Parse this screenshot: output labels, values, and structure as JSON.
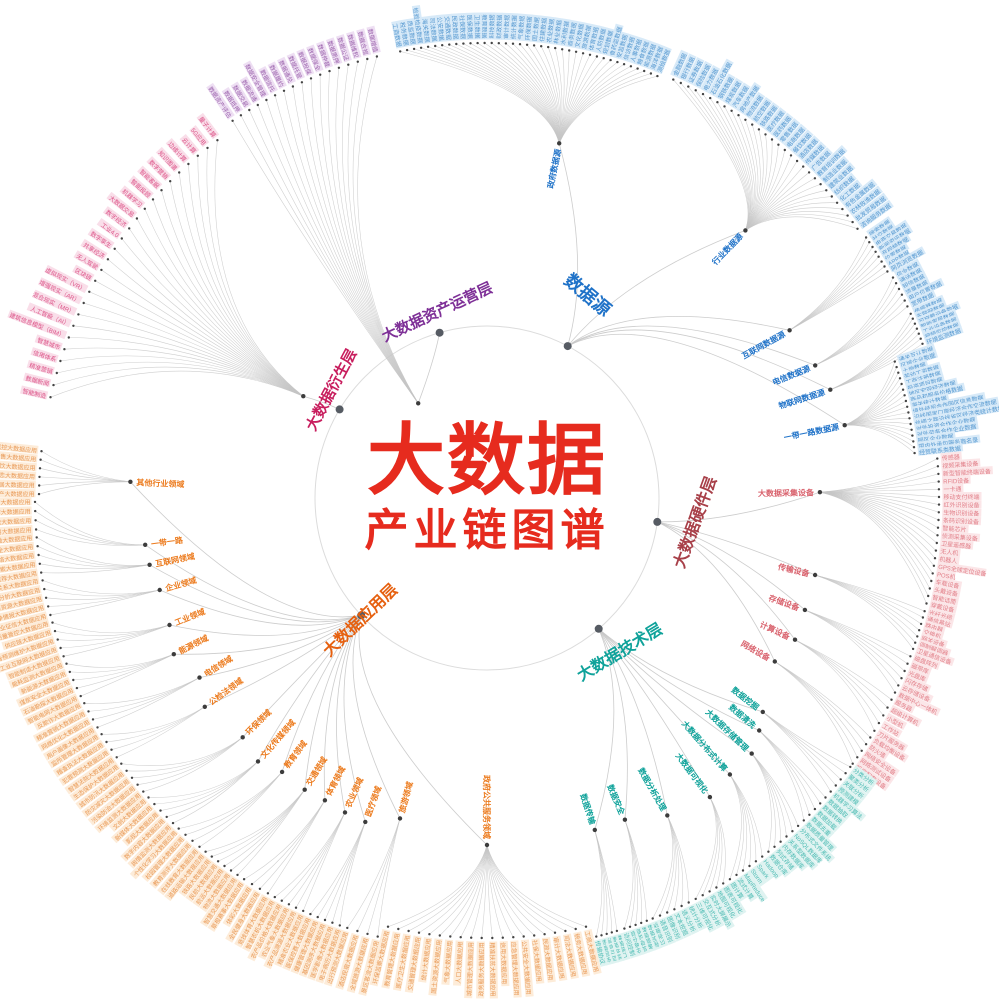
{
  "title": {
    "main": "大数据",
    "sub": "产业链图谱",
    "color": "#e62b1e"
  },
  "ring_color": "#dcdcdc",
  "link_color": "#c6c6c6",
  "branches": [
    {
      "label": "数据源",
      "color": "#1f72c8",
      "leaf_color": "#5598d0",
      "leaf_bg": "#d8eaf8",
      "subs": [
        {
          "label": "政府数据源",
          "leaves": [
            "工商数据",
            "税务数据",
            "质监数据",
            "检验检疫数据",
            "海关数据",
            "司法数据",
            "公安数据",
            "交通数据",
            "民政数据",
            "社保数据",
            "医保数据",
            "卫生数据",
            "教育数据",
            "科技数据",
            "财政数据",
            "审计数据",
            "统计数据",
            "气象数据",
            "环保数据",
            "国土数据",
            "住建数据",
            "农业数据",
            "林业数据",
            "水利数据",
            "商务数据",
            "文化数据",
            "旅游数据",
            "体育数据",
            "人防数据",
            "规划数据",
            "食药监数据",
            "安监数据",
            "信访数据",
            "人事数据",
            "粮食数据",
            "能源数据",
            "海洋数据",
            "测绘数据"
          ]
        },
        {
          "label": "行业数据源",
          "leaves": [
            "金融数据",
            "银行数据",
            "证券数据",
            "保险数据",
            "电力数据",
            "石油石化数据",
            "钢铁数据",
            "煤炭数据",
            "汽车数据",
            "房地产数据",
            "物流数据",
            "航空数据",
            "铁路数据",
            "医疗数据",
            "医药数据",
            "零售数据",
            "电商数据",
            "餐饮数据",
            "酒店数据",
            "传媒数据",
            "广告数据",
            "教育培训数据",
            "制造业数据",
            "建筑业数据",
            "纺织数据",
            "化工数据",
            "有色金属数据",
            "农林牧渔数据",
            "批发贸易数据",
            "咨询服务数据"
          ]
        },
        {
          "label": "互联网数据源",
          "leaves": [
            "搜索数据",
            "社交数据",
            "电商交易数据",
            "新闻资讯数据",
            "音视频数据",
            "位置数据",
            "APP数据",
            "网页浏览数据"
          ]
        },
        {
          "label": "电信数据源",
          "leaves": [
            "信令数据",
            "通话数据",
            "短信数据",
            "流量数据",
            "用户位置数据",
            "宽带数据"
          ]
        },
        {
          "label": "物联网数据源",
          "leaves": [
            "传感器数据",
            "车联网数据",
            "可穿戴设备数据",
            "智能家居数据",
            "工业设备数据",
            "视频监控数据",
            "环境监测数据"
          ]
        },
        {
          "label": "一带一路数据源",
          "leaves": [
            "通关互认数据",
            "区域企业数据",
            "土地数据",
            "劳动工资数据",
            "工商注册数据",
            "投资项目数据",
            "地区宏观经济数据",
            "商品和服务价格数据",
            "海关统计数据",
            "境外经贸合作园区信息数据",
            "沿线国家口岸经济合作交流数据",
            "丝绸之路沿线省区经济类统计数据",
            "对外投资合作企业数据",
            "对外劳务合作企业数据",
            "园区企业数据",
            "国内外承包服务商名录",
            "经贸联系类数据"
          ]
        }
      ]
    },
    {
      "label": "大数据硬件层",
      "color": "#a84049",
      "sub_color": "#d9626d",
      "leaf_color": "#e2808a",
      "leaf_bg": "#fbe6e8",
      "subs": [
        {
          "label": "大数据采集设备",
          "leaves": [
            "传感器",
            "视频采集设备",
            "新型智能终端设备",
            "RFID设备",
            "一卡通",
            "移动支付终端",
            "红外识别设备",
            "生物识别设备",
            "条码识别设备",
            "智能芯片",
            "侦测采集设备",
            "卫星遥感器",
            "无人机",
            "机器人",
            "GPS全球定位设备",
            "POS机",
            "车载设备",
            "头戴设备",
            "智能话筒",
            "穿戴设备"
          ]
        },
        {
          "label": "传输设备",
          "leaves": [
            "光纤光缆",
            "通信基站",
            "路由器",
            "交换机",
            "网关设备",
            "调制解调器",
            "卫星通信设备"
          ]
        },
        {
          "label": "存储设备",
          "leaves": [
            "磁盘阵列",
            "磁带库",
            "光盘库",
            "闪存存储",
            "云存储设备",
            "数据中心一体机"
          ]
        },
        {
          "label": "计算设备",
          "leaves": [
            "服务器",
            "超级计算机",
            "小型机",
            "工作站",
            "刀片服务器"
          ]
        },
        {
          "label": "网络设备",
          "leaves": [
            "负载均衡设备",
            "防火墙",
            "网络安全设备",
            "网络测试设备",
            "机房配套设备"
          ]
        }
      ]
    },
    {
      "label": "大数据技术层",
      "color": "#0fa29a",
      "leaf_color": "#4fbcb4",
      "leaf_bg": "#dff3f1",
      "subs": [
        {
          "label": "数据挖掘",
          "leaves": [
            "分类分析",
            "聚类分析",
            "关联分析",
            "预测建模",
            "机器学习算法"
          ]
        },
        {
          "label": "数据清洗",
          "leaves": [
            "数据抽取",
            "数据转换",
            "数据加载",
            "数据去重",
            "数据质量管理"
          ]
        },
        {
          "label": "大数据存储管理",
          "leaves": [
            "分布式文件系统",
            "NoSQL数据库",
            "关系型数据库",
            "内存数据库",
            "列式存储",
            "数据仓库"
          ]
        },
        {
          "label": "大数据分布式计算",
          "leaves": [
            "Hadoop",
            "Spark",
            "Storm",
            "MapReduce",
            "流式计算",
            "图计算"
          ]
        },
        {
          "label": "大数据可视化",
          "leaves": [
            "图表可视化",
            "地图可视化",
            "实时大屏展示",
            "交互式分析",
            "三维可视化"
          ]
        },
        {
          "label": "数据分析处理",
          "leaves": [
            "统计分析",
            "语义分析",
            "文本挖掘",
            "图像识别",
            "语音识别",
            "深度学习"
          ]
        },
        {
          "label": "数据安全",
          "leaves": [
            "数据加密",
            "数据脱敏",
            "隐私保护",
            "容灾备份",
            "访问控制"
          ]
        },
        {
          "label": "数据传输",
          "leaves": [
            "数据接口",
            "数据总线",
            "消息队列",
            "数据同步",
            "传输协议"
          ]
        }
      ]
    },
    {
      "label": "大数据应用层",
      "color": "#e6600f",
      "sub_color": "#ec7b1e",
      "leaf_color": "#e99a57",
      "leaf_bg": "#fdecd9",
      "subs": [
        {
          "label": "政府公共服务领域",
          "leaves": [
            "工商大数据应用",
            "税务大数据应用",
            "司法大数据应用",
            "审计大数据应用",
            "民政大数据应用",
            "社保大数据应用",
            "公共安全大数据应用",
            "应急管理大数据应用",
            "信用大数据应用",
            "精准扶贫大数据应用",
            "政务服务大数据应用",
            "城市管理大数据应用",
            "人口大数据应用",
            "气象大数据应用",
            "国土资源大数据应用",
            "统计大数据应用",
            "交通管理大数据应用",
            "医疗卫生大数据应用",
            "教育管理大数据应用",
            "环保监察大数据应用"
          ]
        },
        {
          "label": "旅游领域",
          "leaves": [
            "景区客流大数据应用",
            "全域旅游大数据应用",
            "酒店民宿大数据应用",
            "出行预测大数据应用"
          ]
        },
        {
          "label": "医疗领域",
          "leaves": [
            "电子病历大数据应用",
            "医学影像大数据应用",
            "基因测序大数据应用",
            "健康管理大数据应用",
            "医保控费大数据应用"
          ]
        },
        {
          "label": "农业领域",
          "leaves": [
            "精准农业大数据应用",
            "农产品溯源大数据应用",
            "农业气象大数据应用",
            "农产品价格大数据应用",
            "智慧农机大数据应用"
          ]
        },
        {
          "label": "体育领域",
          "leaves": [
            "竞技体育大数据应用",
            "全民健身大数据应用",
            "体彩大数据应用",
            "草根赛事大数据应用"
          ]
        },
        {
          "label": "交通领域",
          "leaves": [
            "智慧交通大数据应用",
            "物流大数据应用",
            "航运大数据应用",
            "民航大数据应用",
            "铁路大数据应用",
            "道路运输大数据应用"
          ]
        },
        {
          "label": "教育领域",
          "leaves": [
            "在线教育大数据应用",
            "教育测评大数据应用",
            "校园管理大数据应用",
            "个性化学习大数据应用"
          ]
        },
        {
          "label": "文化传媒领域",
          "leaves": [
            "舆情监测大数据应用",
            "数字内容大数据应用",
            "影视大数据应用",
            "新媒体大数据应用",
            "文创大数据应用"
          ]
        },
        {
          "label": "环保领域",
          "leaves": [
            "环境监测大数据应用",
            "污染防治大数据应用",
            "防灾减灾大数据应用",
            "城市防汛大数据应用",
            "生态保护大数据应用"
          ]
        },
        {
          "label": "公检法领域",
          "leaves": [
            "智慧法院大数据应用",
            "犯罪预测大数据应用",
            "稽查执法大数据应用",
            "监所管理大数据应用"
          ]
        },
        {
          "label": "电信领域",
          "leaves": [
            "用户画像大数据应用",
            "网络优化大数据应用",
            "精准营销大数据应用",
            "反欺诈大数据应用"
          ]
        },
        {
          "label": "能源领域",
          "leaves": [
            "智能电网大数据应用",
            "石油勘探大数据应用",
            "煤炭安全大数据应用",
            "新能源大数据应用",
            "能耗监测大数据应用"
          ]
        },
        {
          "label": "工业领域",
          "leaves": [
            "智能制造大数据应用",
            "工业互联网大数据应用",
            "设备预测维护大数据应用",
            "供应链大数据应用",
            "质量管控大数据应用"
          ]
        },
        {
          "label": "企业领域",
          "leaves": [
            "企业征信大数据应用",
            "竞争情报大数据应用",
            "人力资源大数据应用",
            "财务分析大数据应用",
            "客户关系大数据应用"
          ]
        },
        {
          "label": "互联网领域",
          "leaves": [
            "电商推荐大数据应用",
            "搜索大数据应用",
            "社交网络大数据应用",
            "网络安全大数据应用",
            "互联网金融大数据应用"
          ]
        },
        {
          "label": "一带一路",
          "leaves": [
            "跨境贸易大数据应用",
            "口岸物流大数据应用",
            "国际产能合作大数据应用",
            "跨境电商大数据应用"
          ]
        },
        {
          "label": "其他行业领域",
          "leaves": [
            "房地产大数据应用",
            "家居大数据应用",
            "婚恋大数据应用",
            "餐饮大数据应用",
            "零售大数据应用",
            "金融风控大数据应用"
          ]
        }
      ]
    },
    {
      "label": "大数据衍生层",
      "color": "#c81e5e",
      "leaf_color": "#dc5488",
      "leaf_bg": "#f9dee9",
      "subs": [
        {
          "label": "",
          "leaves": [
            "智能制造",
            "数据新闻",
            "精准营销",
            "信用体系",
            "智慧城市",
            "建筑信息模型（BIM）",
            "人工智能（AI）",
            "混合现实（MR）",
            "增强现实（AR）",
            "虚拟现实（VR）",
            "区块链",
            "无人驾驶",
            "共享经济",
            "数字孪生",
            "工业4.0",
            "数字经济",
            "大数据交易",
            "机器学习",
            "智能投顾",
            "智能客服",
            "数字营销",
            "知识图谱",
            "边缘计算",
            "云计算",
            "5G应用",
            "量子计算"
          ]
        }
      ]
    },
    {
      "label": "大数据资产运营层",
      "color": "#7e3097",
      "leaf_color": "#9c64ad",
      "leaf_bg": "#eedff3",
      "subs": [
        {
          "label": "",
          "leaves": [
            "数据资产评估",
            "数据抵押",
            "数据交易",
            "数据流通",
            "数据安全管理",
            "数据信托",
            "数据履约",
            "数据通兑",
            "数据托管",
            "数据担保",
            "数据保全",
            "数据仲裁",
            "数据质押",
            "数据公证",
            "数据维权",
            "数据合规",
            "数据增值"
          ]
        }
      ]
    }
  ]
}
